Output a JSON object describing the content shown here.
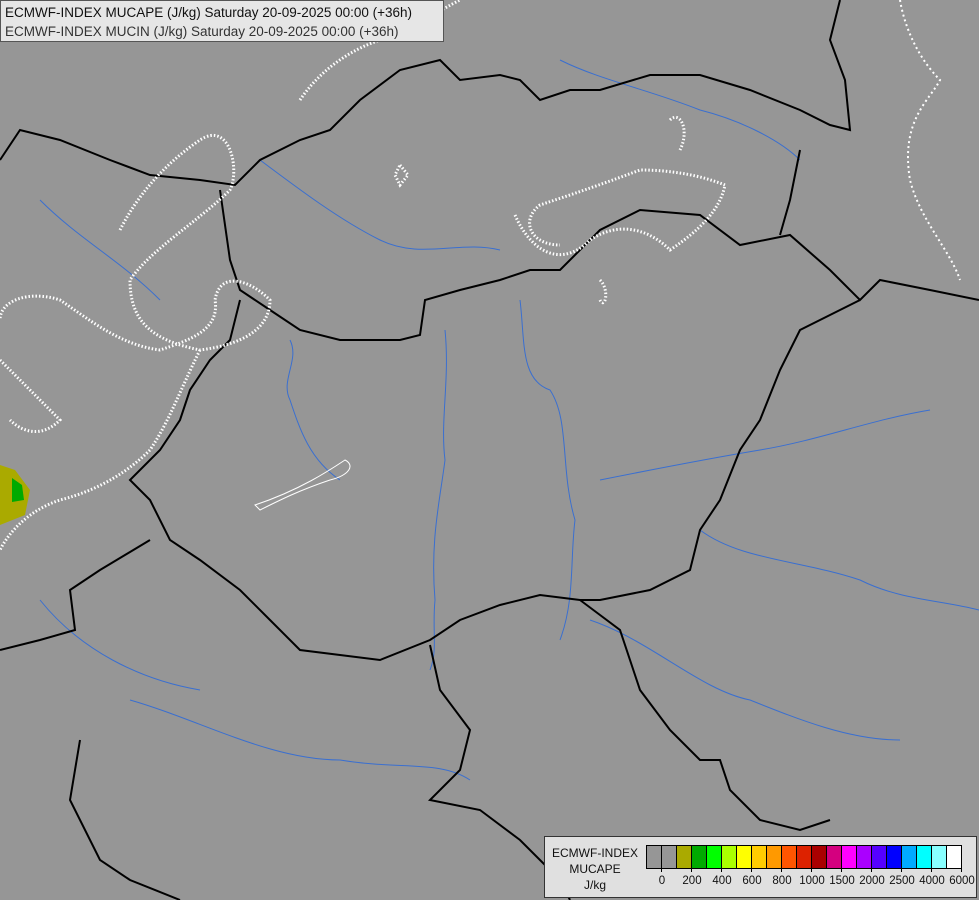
{
  "title": {
    "line1": "ECMWF-INDEX MUCAPE (J/kg) Saturday 20-09-2025 00:00 (+36h)",
    "line2": "ECMWF-INDEX MUCIN (J/kg) Saturday 20-09-2025 00:00 (+36h)"
  },
  "legend": {
    "name": "ECMWF-INDEX",
    "variable": "MUCAPE",
    "unit": "J/kg",
    "colors": [
      "#969696",
      "#969696",
      "#aaaa00",
      "#00aa00",
      "#00ff00",
      "#aaff00",
      "#ffff00",
      "#ffcc00",
      "#ff9900",
      "#ff5500",
      "#dd2200",
      "#aa0000",
      "#d4007f",
      "#ff00ff",
      "#aa00ff",
      "#5500ff",
      "#0000ff",
      "#00aaff",
      "#00ffff",
      "#88ffff",
      "#ffffff"
    ],
    "tick_labels": [
      "0",
      "200",
      "400",
      "600",
      "800",
      "1000",
      "1500",
      "2000",
      "2500",
      "4000",
      "6000"
    ]
  },
  "map_colors": {
    "background": "#969696",
    "borders": "#000000",
    "rivers": "#3a6fd0",
    "cin_contours": "#ffffff"
  }
}
